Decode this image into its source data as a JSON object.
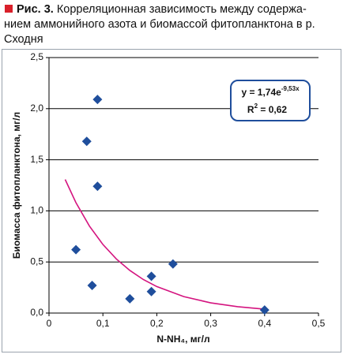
{
  "caption": {
    "label": "Рис. 3.",
    "lines": [
      "Корреляционная зависимость между содержа-",
      "нием аммонийного азота и биомассой фитопланктона в р.",
      "Сходня"
    ]
  },
  "chart_data": {
    "type": "scatter",
    "x_label": "N-NH₄, мг/л",
    "y_label": "Биомасса фитопланктона, мг/л",
    "x": [
      0.05,
      0.07,
      0.08,
      0.09,
      0.09,
      0.15,
      0.19,
      0.19,
      0.23,
      0.4
    ],
    "values": [
      0.62,
      1.68,
      0.27,
      2.09,
      1.24,
      0.14,
      0.36,
      0.21,
      0.48,
      0.03
    ],
    "color": "#1f4e9c",
    "trend": {
      "color": "#d4147f",
      "x": [
        0.03,
        0.05,
        0.075,
        0.1,
        0.125,
        0.15,
        0.175,
        0.2,
        0.25,
        0.3,
        0.35,
        0.4
      ],
      "values": [
        1.307,
        1.08,
        0.851,
        0.671,
        0.529,
        0.417,
        0.328,
        0.259,
        0.161,
        0.1,
        0.062,
        0.038
      ]
    },
    "equation": {
      "base": "y = 1,74e",
      "exponent": "-9,53x"
    },
    "r2": {
      "base": "R",
      "exponent": "2",
      "rest": " = 0,62"
    },
    "xlim": [
      0,
      0.5
    ],
    "xticks": [
      0,
      {
        "value": 0.1,
        "label": "0,1"
      },
      {
        "value": 0.2,
        "label": "0,2"
      },
      {
        "value": 0.3,
        "label": "0,3"
      },
      {
        "value": 0.4,
        "label": "0,4"
      },
      {
        "value": 0.5,
        "label": "0,5"
      }
    ],
    "ylim": [
      0,
      2.5
    ],
    "yticks": [
      {
        "value": 0,
        "label": "0,0"
      },
      {
        "value": 0.5,
        "label": "0,5"
      },
      {
        "value": 1,
        "label": "1,0"
      },
      {
        "value": 1.5,
        "label": "1,5"
      },
      {
        "value": 2,
        "label": "2,0"
      },
      {
        "value": 2.5,
        "label": "2,5"
      }
    ],
    "grid": true
  }
}
